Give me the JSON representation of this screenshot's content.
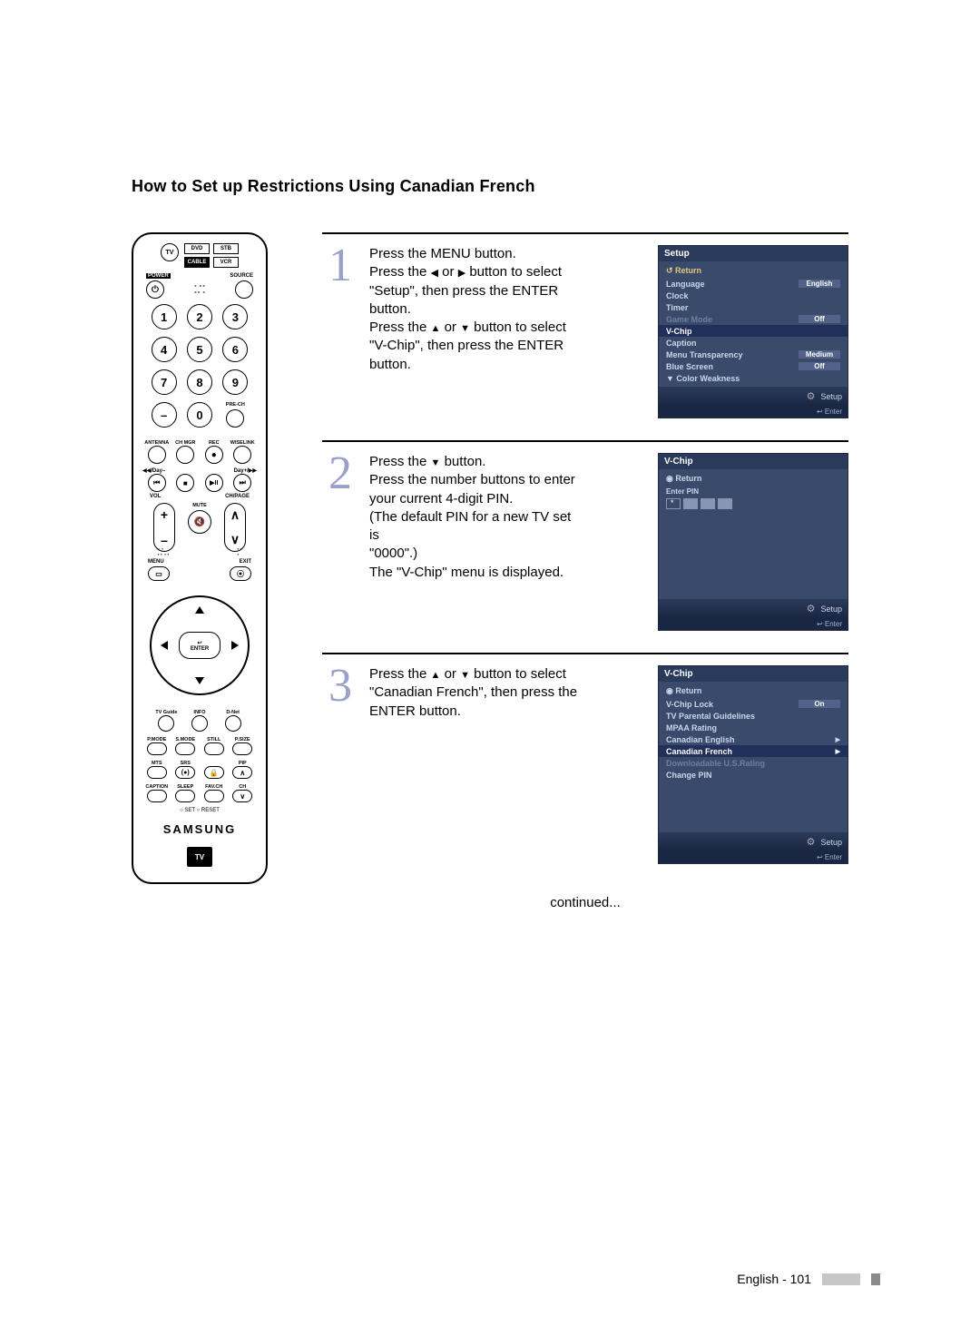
{
  "page": {
    "title": "How to Set up Restrictions Using Canadian French",
    "continued": "continued...",
    "footer": "English - 101"
  },
  "remote": {
    "tv": "TV",
    "dvd": "DVD",
    "stb": "STB",
    "cable": "CABLE",
    "vcr": "VCR",
    "power": "POWER",
    "source": "SOURCE",
    "nums": [
      "1",
      "2",
      "3",
      "4",
      "5",
      "6",
      "7",
      "8",
      "9",
      "–",
      "0"
    ],
    "prech": "PRE-CH",
    "row4": [
      "ANTENNA",
      "CH MGR",
      "REC",
      "WISELINK"
    ],
    "dayminus": "◀◀/Day–",
    "dayplus": "Day+/▶▶",
    "vol": "VOL",
    "chpage": "CH/PAGE",
    "mute": "MUTE",
    "menu": "MENU",
    "exit": "EXIT",
    "enter": "ENTER",
    "row_info": [
      "TV Guide",
      "INFO",
      "D-Net"
    ],
    "row_mode": [
      "P.MODE",
      "S.MODE",
      "STILL",
      "P.SIZE"
    ],
    "row_mts": [
      "MTS",
      "SRS",
      "",
      "PIP"
    ],
    "row_cap": [
      "CAPTION",
      "SLEEP",
      "FAV.CH",
      "CH"
    ],
    "setreset": "○ SET     ○ RESET",
    "brand": "SAMSUNG",
    "tvguide": "TV"
  },
  "steps": {
    "s1": {
      "num": "1",
      "l1": "Press the MENU button.",
      "l2a": "Press the ",
      "l2b": " or ",
      "l2c": " button to select",
      "l3": "\"Setup\", then press the ENTER",
      "l4": "button.",
      "l5a": "Press the ",
      "l5b": " or ",
      "l5c": " button to select",
      "l6": "\"V-Chip\", then press the ENTER",
      "l7": "button."
    },
    "s2": {
      "num": "2",
      "l1a": "Press the ",
      "l1b": " button.",
      "l2": "Press the number buttons to enter",
      "l3": "your current 4-digit PIN.",
      "l4": "(The default PIN for a new TV set is",
      "l5": "\"0000\".)",
      "l6": "The \"V-Chip\" menu is displayed."
    },
    "s3": {
      "num": "3",
      "l1a": "Press the ",
      "l1b": " or ",
      "l1c": " button to select",
      "l2": "\"Canadian French\", then press the",
      "l3": "ENTER button."
    }
  },
  "osd1": {
    "title": "Setup",
    "return": "Return",
    "items": [
      {
        "label": "Language",
        "val": "English",
        "sel": false,
        "dim": false,
        "hasval": true
      },
      {
        "label": "Clock",
        "sel": false,
        "dim": false,
        "hasval": false
      },
      {
        "label": "Timer",
        "sel": false,
        "dim": false,
        "hasval": false
      },
      {
        "label": "Game Mode",
        "val": "Off",
        "sel": false,
        "dim": true,
        "hasval": true
      },
      {
        "label": "V-Chip",
        "sel": true,
        "dim": false,
        "hasval": false
      },
      {
        "label": "Caption",
        "sel": false,
        "dim": false,
        "hasval": false
      },
      {
        "label": "Menu Transparency",
        "val": "Medium",
        "sel": false,
        "dim": false,
        "hasval": true
      },
      {
        "label": "Blue Screen",
        "val": "Off",
        "sel": false,
        "dim": false,
        "hasval": true
      },
      {
        "label": "▼ Color Weakness",
        "sel": false,
        "dim": false,
        "hasval": false
      }
    ],
    "footer": "Setup",
    "enter": "Enter"
  },
  "osd2": {
    "title": "V-Chip",
    "return": "Return",
    "enterpin": "Enter PIN",
    "footer": "Setup",
    "enter": "Enter"
  },
  "osd3": {
    "title": "V-Chip",
    "return": "Return",
    "items": [
      {
        "label": "V-Chip Lock",
        "val": "On",
        "sel": false,
        "dim": false,
        "hasval": true,
        "arrow": false
      },
      {
        "label": "TV Parental Guidelines",
        "sel": false,
        "dim": false,
        "hasval": false,
        "arrow": false
      },
      {
        "label": "MPAA Rating",
        "sel": false,
        "dim": false,
        "hasval": false,
        "arrow": false
      },
      {
        "label": "Canadian English",
        "sel": false,
        "dim": false,
        "hasval": false,
        "arrow": true
      },
      {
        "label": "Canadian French",
        "sel": true,
        "dim": false,
        "hasval": false,
        "arrow": true
      },
      {
        "label": "Downloadable U.S.Rating",
        "sel": false,
        "dim": true,
        "hasval": false,
        "arrow": false
      },
      {
        "label": "Change PIN",
        "sel": false,
        "dim": false,
        "hasval": false,
        "arrow": false
      }
    ],
    "footer": "Setup",
    "enter": "Enter"
  }
}
